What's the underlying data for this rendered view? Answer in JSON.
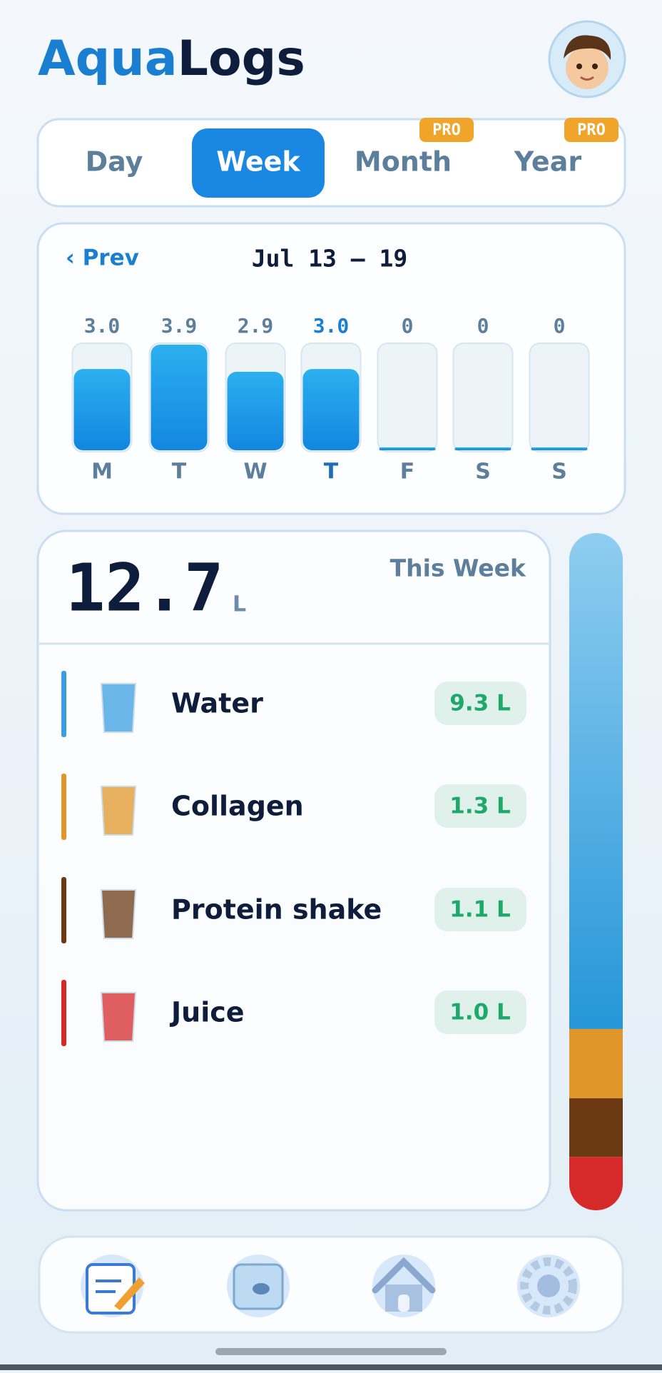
{
  "header": {
    "title_part1": "Aqua",
    "title_part2": "Logs"
  },
  "tabs": [
    {
      "label": "Day"
    },
    {
      "label": "Week",
      "selected": true
    },
    {
      "label": "Month",
      "badge": "PRO"
    },
    {
      "label": "Year",
      "badge": "PRO"
    }
  ],
  "week": {
    "prev": "‹ Prev",
    "range": "Jul 13 – 19",
    "days": [
      {
        "label": "M",
        "value": 3,
        "value_label": "3.0"
      },
      {
        "label": "T",
        "value": 3.9
      },
      {
        "label": "W",
        "value": 2.9
      },
      {
        "label": "T",
        "value": 3,
        "value_label": "3.0",
        "highlight": true
      },
      {
        "label": "F",
        "value": 0
      },
      {
        "label": "S",
        "value": 0
      },
      {
        "label": "S",
        "value": 0
      }
    ]
  },
  "summary": {
    "total": 12.7,
    "unit": "L",
    "period": "This Week",
    "drinks": [
      {
        "name": "Water",
        "amount": 9.3,
        "amount_label": "9.3 L",
        "color": "#3a9ee0"
      },
      {
        "name": "Collagen",
        "amount": 1.3,
        "amount_label": "1.3 L",
        "color": "#e0962a"
      },
      {
        "name": "Protein shake",
        "amount": 1.1,
        "amount_label": "1.1 L",
        "color": "#6b3a14"
      },
      {
        "name": "Juice",
        "amount": 1,
        "amount_label": "1.0 L",
        "color": "#d62a2a"
      }
    ]
  }
}
